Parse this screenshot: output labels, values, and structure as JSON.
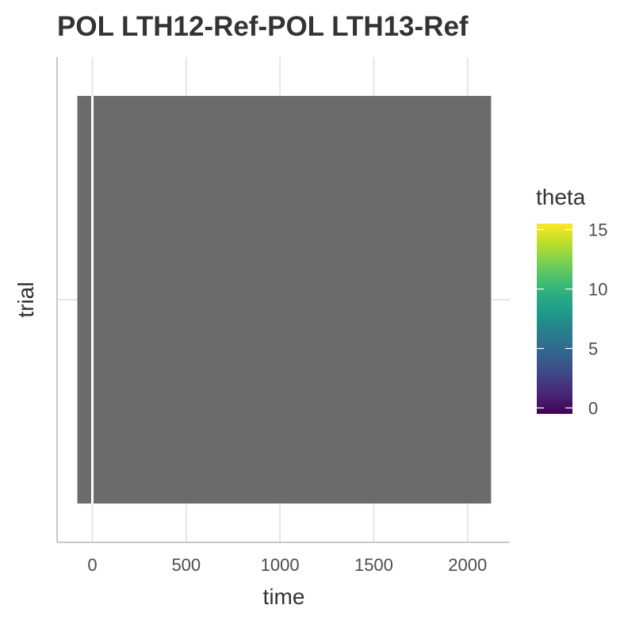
{
  "chart_data": {
    "type": "heatmap",
    "title": "POL LTH12-Ref-POL LTH13-Ref",
    "xlabel": "time",
    "ylabel": "trial",
    "xlim": [
      -188,
      2225
    ],
    "x_ticks": [
      0,
      500,
      1000,
      1500,
      2000
    ],
    "x_tick_labels": [
      "0",
      "500",
      "1000",
      "1500",
      "2000"
    ],
    "ylim": [
      0,
      1
    ],
    "y_ticks": [
      0.5
    ],
    "tile": {
      "x_start": -80,
      "x_end": 2125,
      "y_start": 0.08,
      "y_end": 0.92
    },
    "event_line_x": 0,
    "fill_color": "#6b6b6b",
    "grid": true,
    "legend": {
      "title": "theta",
      "position": "right",
      "range": [
        -0.5,
        15.5
      ],
      "ticks": [
        0,
        5,
        10,
        15
      ],
      "tick_labels": [
        "0",
        "5",
        "10",
        "15"
      ],
      "colors": [
        "#440154",
        "#482878",
        "#3e4a89",
        "#31688e",
        "#26828e",
        "#1f9e89",
        "#35b779",
        "#6dcd59",
        "#b4de2c",
        "#fde725"
      ]
    }
  }
}
